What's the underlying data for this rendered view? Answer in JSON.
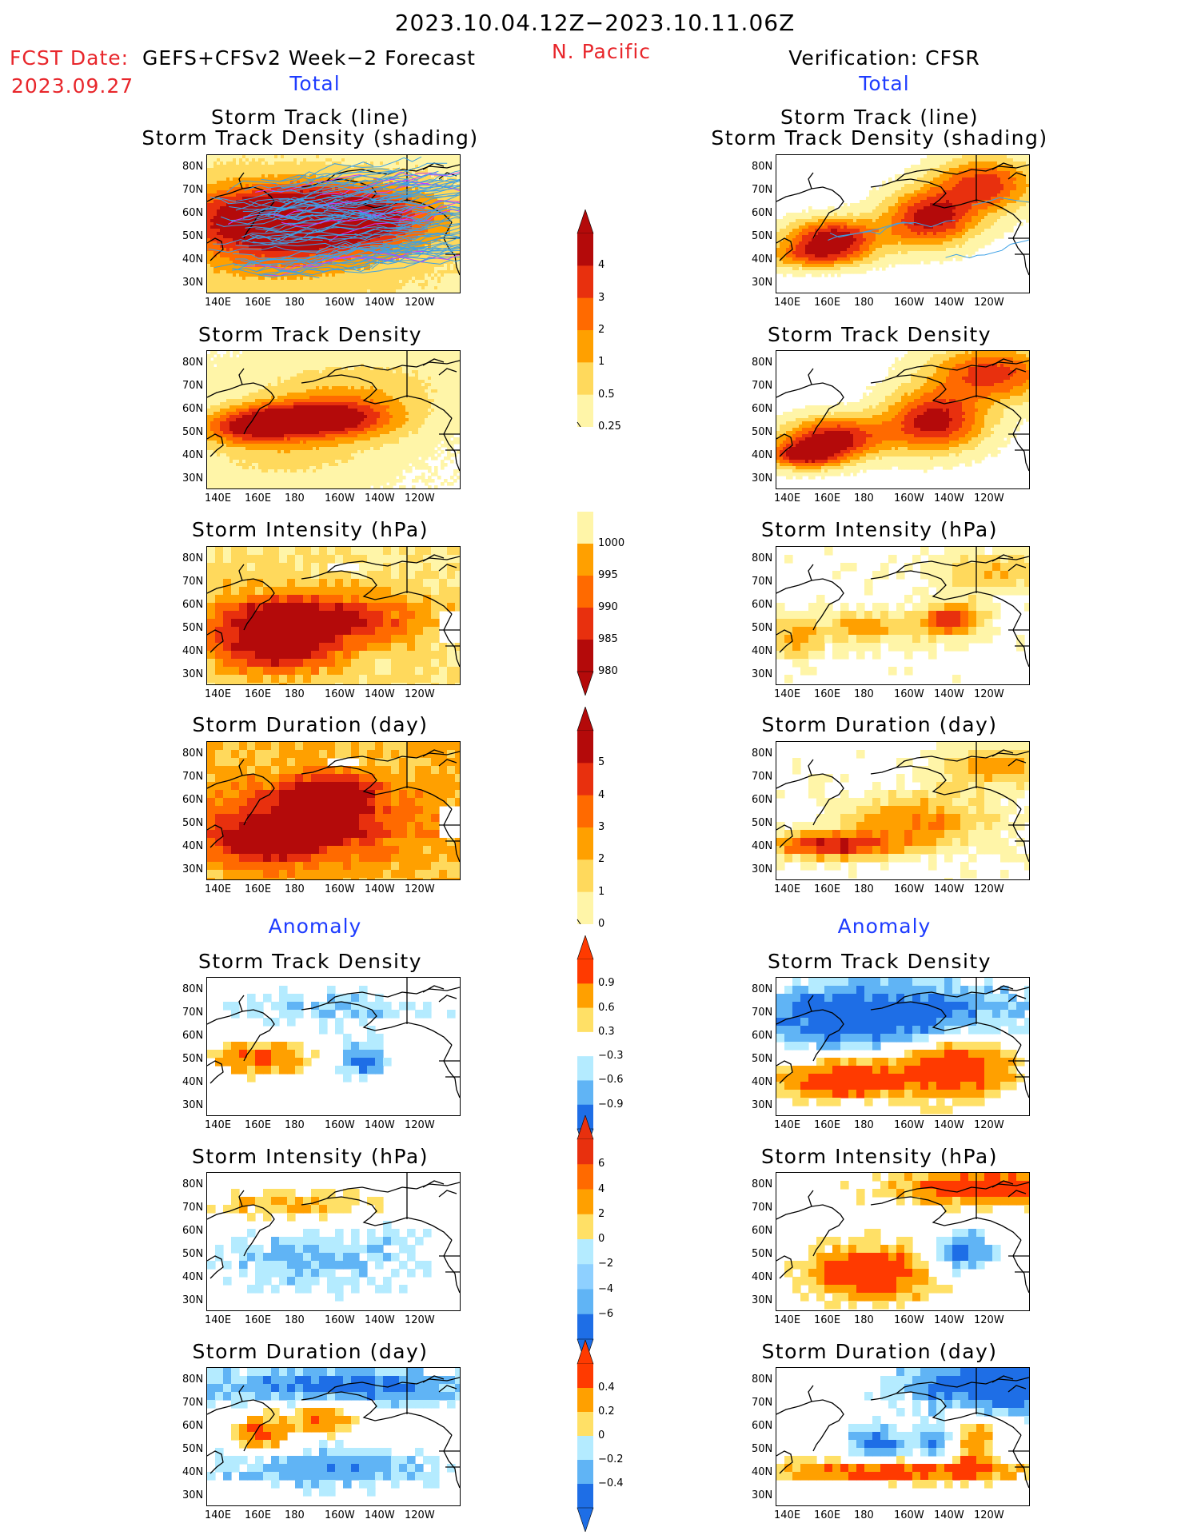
{
  "header": {
    "date_range": "2023.10.04.12Z−2023.10.11.06Z",
    "fcst_label": "FCST Date:",
    "fcst_model": "GEFS+CFSv2 Week−2 Forecast",
    "fcst_date": "2023.09.27",
    "region": "N. Pacific",
    "verification": "Verification: CFSR",
    "left_total": "Total",
    "right_total": "Total",
    "left_anomaly": "Anomaly",
    "right_anomaly": "Anomaly"
  },
  "colors": {
    "lightyellow": "#fff5a8",
    "yellow": "#ffd95c",
    "orange": "#ffa000",
    "darkorange": "#ff6a00",
    "red": "#e8300e",
    "darkred": "#b40a0a",
    "lightblue": "#b4ebff",
    "midblue": "#60b4f5",
    "blue": "#1e6ee6",
    "track": "#3ca0e6"
  },
  "chart_data": [
    {
      "id": "fcst-track",
      "column": "forecast",
      "section": "Total",
      "type": "heatmap",
      "title": "Storm Track (line)",
      "subtitle": "Storm Track Density (shading)",
      "x_ticks": [
        "140E",
        "160E",
        "180",
        "160W",
        "140W",
        "120W"
      ],
      "y_ticks": [
        "80N",
        "70N",
        "60N",
        "50N",
        "40N",
        "30N"
      ],
      "overlay": "storm track lines"
    },
    {
      "id": "fcst-density",
      "column": "forecast",
      "section": "Total",
      "type": "heatmap",
      "title": "Storm Track Density",
      "x_ticks": [
        "140E",
        "160E",
        "180",
        "160W",
        "140W",
        "120W"
      ],
      "y_ticks": [
        "80N",
        "70N",
        "60N",
        "50N",
        "40N",
        "30N"
      ]
    },
    {
      "id": "fcst-intensity",
      "column": "forecast",
      "section": "Total",
      "type": "heatmap",
      "title": "Storm Intensity (hPa)",
      "x_ticks": [
        "140E",
        "160E",
        "180",
        "160W",
        "140W",
        "120W"
      ],
      "y_ticks": [
        "80N",
        "70N",
        "60N",
        "50N",
        "40N",
        "30N"
      ]
    },
    {
      "id": "fcst-duration",
      "column": "forecast",
      "section": "Total",
      "type": "heatmap",
      "title": "Storm Duration (day)",
      "x_ticks": [
        "140E",
        "160E",
        "180",
        "160W",
        "140W",
        "120W"
      ],
      "y_ticks": [
        "80N",
        "70N",
        "60N",
        "50N",
        "40N",
        "30N"
      ]
    },
    {
      "id": "fcst-anom-density",
      "column": "forecast",
      "section": "Anomaly",
      "type": "heatmap",
      "title": "Storm Track Density",
      "x_ticks": [
        "140E",
        "160E",
        "180",
        "160W",
        "140W",
        "120W"
      ],
      "y_ticks": [
        "80N",
        "70N",
        "60N",
        "50N",
        "40N",
        "30N"
      ]
    },
    {
      "id": "fcst-anom-intensity",
      "column": "forecast",
      "section": "Anomaly",
      "type": "heatmap",
      "title": "Storm Intensity (hPa)",
      "x_ticks": [
        "140E",
        "160E",
        "180",
        "160W",
        "140W",
        "120W"
      ],
      "y_ticks": [
        "80N",
        "70N",
        "60N",
        "50N",
        "40N",
        "30N"
      ]
    },
    {
      "id": "fcst-anom-duration",
      "column": "forecast",
      "section": "Anomaly",
      "type": "heatmap",
      "title": "Storm Duration (day)",
      "x_ticks": [
        "140E",
        "160E",
        "180",
        "160W",
        "140W",
        "120W"
      ],
      "y_ticks": [
        "80N",
        "70N",
        "60N",
        "50N",
        "40N",
        "30N"
      ]
    },
    {
      "id": "ver-track",
      "column": "verification",
      "section": "Total",
      "type": "heatmap",
      "title": "Storm Track (line)",
      "subtitle": "Storm Track Density (shading)",
      "x_ticks": [
        "140E",
        "160E",
        "180",
        "160W",
        "140W",
        "120W"
      ],
      "y_ticks": [
        "80N",
        "70N",
        "60N",
        "50N",
        "40N",
        "30N"
      ],
      "overlay": "storm track lines"
    },
    {
      "id": "ver-density",
      "column": "verification",
      "section": "Total",
      "type": "heatmap",
      "title": "Storm Track Density",
      "x_ticks": [
        "140E",
        "160E",
        "180",
        "160W",
        "140W",
        "120W"
      ],
      "y_ticks": [
        "80N",
        "70N",
        "60N",
        "50N",
        "40N",
        "30N"
      ]
    },
    {
      "id": "ver-intensity",
      "column": "verification",
      "section": "Total",
      "type": "heatmap",
      "title": "Storm Intensity (hPa)",
      "x_ticks": [
        "140E",
        "160E",
        "180",
        "160W",
        "140W",
        "120W"
      ],
      "y_ticks": [
        "80N",
        "70N",
        "60N",
        "50N",
        "40N",
        "30N"
      ]
    },
    {
      "id": "ver-duration",
      "column": "verification",
      "section": "Total",
      "type": "heatmap",
      "title": "Storm Duration (day)",
      "x_ticks": [
        "140E",
        "160E",
        "180",
        "160W",
        "140W",
        "120W"
      ],
      "y_ticks": [
        "80N",
        "70N",
        "60N",
        "50N",
        "40N",
        "30N"
      ]
    },
    {
      "id": "ver-anom-density",
      "column": "verification",
      "section": "Anomaly",
      "type": "heatmap",
      "title": "Storm Track Density",
      "x_ticks": [
        "140E",
        "160E",
        "180",
        "160W",
        "140W",
        "120W"
      ],
      "y_ticks": [
        "80N",
        "70N",
        "60N",
        "50N",
        "40N",
        "30N"
      ]
    },
    {
      "id": "ver-anom-intensity",
      "column": "verification",
      "section": "Anomaly",
      "type": "heatmap",
      "title": "Storm Intensity (hPa)",
      "x_ticks": [
        "140E",
        "160E",
        "180",
        "160W",
        "140W",
        "120W"
      ],
      "y_ticks": [
        "80N",
        "70N",
        "60N",
        "50N",
        "40N",
        "30N"
      ]
    },
    {
      "id": "ver-anom-duration",
      "column": "verification",
      "section": "Anomaly",
      "type": "heatmap",
      "title": "Storm Duration (day)",
      "x_ticks": [
        "140E",
        "160E",
        "180",
        "160W",
        "140W",
        "120W"
      ],
      "y_ticks": [
        "80N",
        "70N",
        "60N",
        "50N",
        "40N",
        "30N"
      ]
    }
  ],
  "colorbars": [
    {
      "id": "cb-density",
      "labels": [
        "4",
        "3",
        "2",
        "1",
        "0.5",
        "0.25"
      ],
      "colors": [
        "#b40a0a",
        "#e8300e",
        "#ff6a00",
        "#ffa000",
        "#ffd95c",
        "#fff5a8"
      ]
    },
    {
      "id": "cb-intensity",
      "labels": [
        "1000",
        "995",
        "990",
        "985",
        "980"
      ],
      "colors": [
        "#fff5a8",
        "#ffa000",
        "#ff6a00",
        "#e8300e",
        "#b40a0a"
      ]
    },
    {
      "id": "cb-duration",
      "labels": [
        "5",
        "4",
        "3",
        "2",
        "1",
        "0"
      ],
      "colors": [
        "#b40a0a",
        "#e8300e",
        "#ff6a00",
        "#ffa000",
        "#ffd95c",
        "#fff5a8"
      ]
    },
    {
      "id": "cb-anom-density",
      "labels": [
        "0.9",
        "0.6",
        "0.3",
        "−0.3",
        "−0.6",
        "−0.9"
      ],
      "colors": [
        "#ff3a00",
        "#ffa000",
        "#ffe066",
        "#ffffff",
        "#b4ebff",
        "#60b4f5",
        "#1e6ee6"
      ]
    },
    {
      "id": "cb-anom-intensity",
      "labels": [
        "6",
        "4",
        "2",
        "0",
        "−2",
        "−4",
        "−6"
      ],
      "colors": [
        "#e8300e",
        "#ff6a00",
        "#ffa000",
        "#ffe066",
        "#b4ebff",
        "#8ed0ff",
        "#60b4f5",
        "#1e6ee6"
      ]
    },
    {
      "id": "cb-anom-duration",
      "labels": [
        "0.4",
        "0.2",
        "0",
        "−0.2",
        "−0.4"
      ],
      "colors": [
        "#ff3a00",
        "#ffa000",
        "#ffe066",
        "#b4ebff",
        "#60b4f5",
        "#1e6ee6"
      ]
    }
  ]
}
